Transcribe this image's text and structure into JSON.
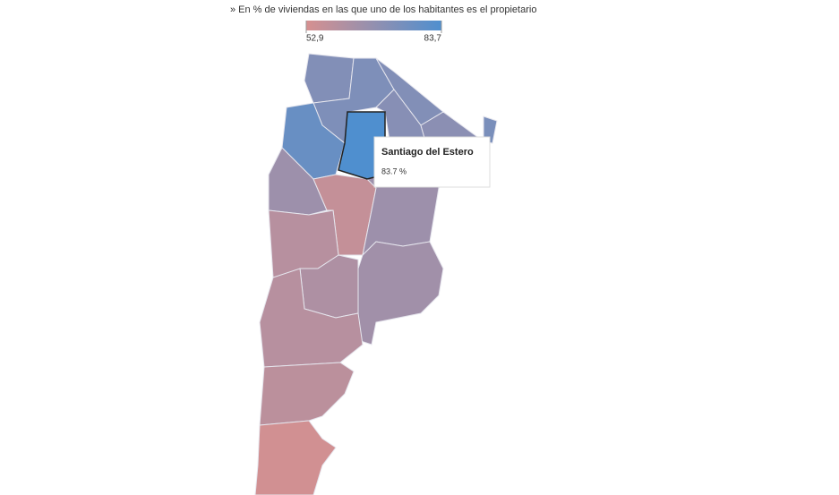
{
  "subtitle": "» En % de viviendas en las que uno de los habitantes es el propietario",
  "legend": {
    "min": {
      "value": 52.9,
      "label": "52,9"
    },
    "max": {
      "value": 83.7,
      "label": "83,7"
    },
    "colors": [
      "#d69090",
      "#4f8fcf"
    ]
  },
  "region_values": [
    72,
    73,
    72,
    71,
    74,
    70,
    78,
    83.7,
    66,
    57,
    66,
    60,
    65,
    62,
    60,
    59,
    54
  ],
  "tooltip": {
    "name": "Santiago del Estero",
    "value_label": "83.7 %"
  }
}
